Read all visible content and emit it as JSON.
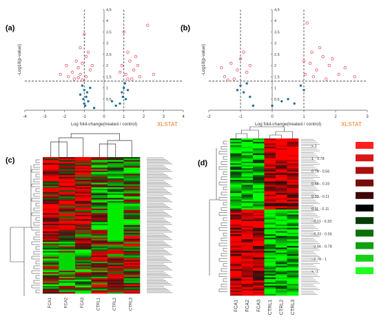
{
  "panels": {
    "a": {
      "label": "(a)"
    },
    "b": {
      "label": "(b)"
    },
    "c": {
      "label": "(c)"
    },
    "d": {
      "label": "(d)"
    }
  },
  "chart_data": [
    {
      "id": "a",
      "type": "scatter",
      "xlabel": "Log fold-change(treated / control)",
      "ylabel": "-Log10(p-value)",
      "xlim": [
        -4,
        4
      ],
      "ylim": [
        0,
        4.5
      ],
      "xticks": [
        "-4",
        "-3",
        "-2",
        "-1",
        "0",
        "1",
        "2",
        "3",
        "4"
      ],
      "yticks": [
        "0.5",
        "1",
        "1.5",
        "2",
        "2.5",
        "3",
        "3.5",
        "4",
        "4,5"
      ],
      "threshold_x": [
        -1,
        1
      ],
      "threshold_y": 1.3,
      "logo": "XLSTAT",
      "series": [
        {
          "color": "#e8556a",
          "marker": "open-circle",
          "points": [
            [
              -1.2,
              1.6
            ],
            [
              -1.1,
              2.1
            ],
            [
              -0.9,
              2.4
            ],
            [
              -1.3,
              1.9
            ],
            [
              -1.5,
              1.4
            ],
            [
              -0.8,
              2.6
            ],
            [
              -1.0,
              3.4
            ],
            [
              -0.7,
              1.8
            ],
            [
              -1.4,
              2.2
            ],
            [
              -1.8,
              1.5
            ],
            [
              -2.2,
              1.6
            ],
            [
              -1.6,
              1.7
            ],
            [
              -1.1,
              1.35
            ],
            [
              -0.6,
              2.0
            ],
            [
              -1.9,
              2.0
            ],
            [
              -1.2,
              2.8
            ],
            [
              -0.9,
              1.5
            ],
            [
              -1.3,
              1.45
            ],
            [
              1.1,
              1.6
            ],
            [
              1.3,
              2.2
            ],
            [
              1.5,
              1.8
            ],
            [
              1.8,
              1.5
            ],
            [
              1.2,
              2.6
            ],
            [
              0.9,
              2.0
            ],
            [
              1.0,
              3.5
            ],
            [
              2.2,
              3.8
            ],
            [
              1.4,
              1.4
            ],
            [
              1.7,
              2.0
            ],
            [
              2.5,
              1.6
            ],
            [
              1.2,
              1.4
            ],
            [
              0.8,
              1.7
            ],
            [
              1.6,
              2.4
            ]
          ]
        },
        {
          "color": "#1f6f9c",
          "marker": "filled-circle",
          "points": [
            [
              -1.0,
              0.9
            ],
            [
              -0.9,
              0.6
            ],
            [
              -1.1,
              1.1
            ],
            [
              -0.8,
              0.4
            ],
            [
              -1.2,
              0.7
            ],
            [
              -1.0,
              0.3
            ],
            [
              -0.7,
              1.0
            ],
            [
              -0.95,
              0.2
            ],
            [
              -1.05,
              0.5
            ],
            [
              -0.85,
              0.8
            ],
            [
              -0.5,
              0.1
            ],
            [
              0.6,
              0.2
            ],
            [
              0.9,
              0.8
            ],
            [
              1.0,
              1.0
            ],
            [
              1.1,
              0.5
            ],
            [
              0.8,
              0.3
            ],
            [
              1.05,
              1.2
            ],
            [
              0.95,
              0.6
            ],
            [
              0.4,
              0.4
            ],
            [
              1.2,
              0.9
            ]
          ]
        }
      ]
    },
    {
      "id": "b",
      "type": "scatter",
      "xlabel": "Log fold-change(treated / control)",
      "ylabel": "-Log10(p-value)",
      "xlim": [
        -2,
        3
      ],
      "ylim": [
        0,
        4.5
      ],
      "xticks": [
        "-2",
        "-1",
        "0",
        "1",
        "2",
        "3"
      ],
      "yticks": [
        "0.5",
        "1",
        "1.5",
        "2",
        "2.5",
        "3",
        "3.5",
        "4",
        "4,5"
      ],
      "threshold_x": [
        -1,
        1
      ],
      "threshold_y": 1.3,
      "logo": "XLSTAT",
      "series": [
        {
          "color": "#e8556a",
          "marker": "open-circle",
          "points": [
            [
              -1.3,
              2.1
            ],
            [
              -1.1,
              1.8
            ],
            [
              -0.9,
              2.6
            ],
            [
              -1.5,
              1.5
            ],
            [
              -1.0,
              2.3
            ],
            [
              -0.8,
              1.7
            ],
            [
              -1.2,
              1.4
            ],
            [
              -1.6,
              1.9
            ],
            [
              -0.7,
              2.0
            ],
            [
              -1.4,
              1.35
            ],
            [
              1.2,
              2.1
            ],
            [
              1.4,
              1.8
            ],
            [
              1.1,
              3.9
            ],
            [
              1.6,
              2.4
            ],
            [
              1.3,
              1.5
            ],
            [
              1.8,
              2.0
            ],
            [
              2.1,
              1.6
            ],
            [
              1.5,
              2.8
            ],
            [
              1.0,
              2.2
            ],
            [
              2.3,
              1.9
            ],
            [
              1.7,
              1.4
            ],
            [
              2.6,
              1.5
            ],
            [
              1.25,
              2.6
            ],
            [
              1.9,
              2.3
            ],
            [
              1.05,
              1.6
            ]
          ]
        },
        {
          "color": "#1f6f9c",
          "marker": "filled-circle",
          "points": [
            [
              -1.0,
              1.1
            ],
            [
              -0.9,
              0.8
            ],
            [
              -0.8,
              1.2
            ],
            [
              -0.7,
              0.6
            ],
            [
              -1.1,
              0.9
            ],
            [
              -0.6,
              0.2
            ],
            [
              0.3,
              0.4
            ],
            [
              0.5,
              0.5
            ],
            [
              0.7,
              0.3
            ],
            [
              1.0,
              0.9
            ],
            [
              0.9,
              1.1
            ],
            [
              0.0,
              0.2
            ]
          ]
        }
      ]
    },
    {
      "id": "c",
      "type": "heatmap",
      "columns": [
        "FCA1",
        "FCA2",
        "FCA3",
        "CTRL1",
        "CTRL2",
        "CTRL3"
      ],
      "rows": 90
    },
    {
      "id": "d",
      "type": "heatmap",
      "columns": [
        "FCA1",
        "FCA2",
        "FCA3",
        "CTRL1",
        "CTRL2",
        "CTRL3"
      ],
      "rows": 95,
      "legend": [
        {
          "label": "> 1",
          "color": "#ff2020"
        },
        {
          "label": "1 - 0.78",
          "color": "#d81818"
        },
        {
          "label": "0.78 - 0.56",
          "color": "#a81010"
        },
        {
          "label": "0.56 - 0.33",
          "color": "#780a0a"
        },
        {
          "label": "0.33 - 0.11",
          "color": "#400505"
        },
        {
          "label": "0.11 - 0.11",
          "color": "#000000"
        },
        {
          "label": "- 0.11 - 0.33",
          "color": "#053d05"
        },
        {
          "label": "- 0.33 - 0.56",
          "color": "#0a700a"
        },
        {
          "label": "- 0.56 - 0.78",
          "color": "#10a010"
        },
        {
          "label": "- 0.78 - 1",
          "color": "#18d018"
        },
        {
          "label": "< -1",
          "color": "#20ff20"
        }
      ]
    }
  ]
}
